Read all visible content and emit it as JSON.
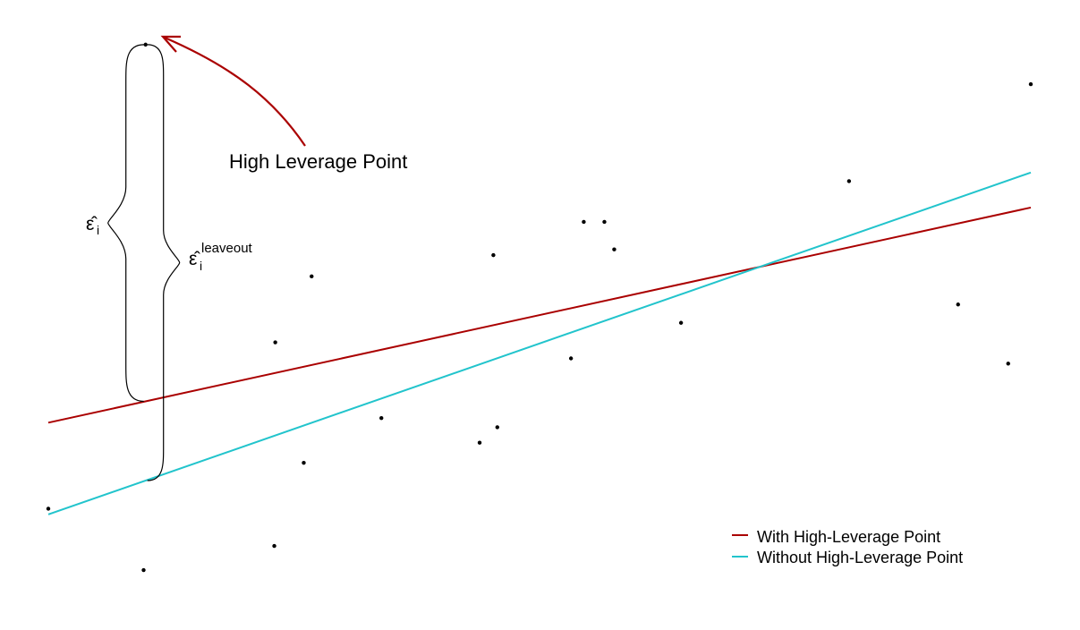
{
  "chart_data": {
    "type": "scatter",
    "title": "",
    "xlabel": "",
    "ylabel": "",
    "xlim": [
      0,
      100
    ],
    "ylim": [
      0,
      100
    ],
    "grid": false,
    "legend_position": "bottom-right",
    "points": [
      {
        "x": 0.0,
        "y": 16.0
      },
      {
        "x": 9.7,
        "y": 5.3
      },
      {
        "x": 9.9,
        "y": 96.9
      },
      {
        "x": 23.0,
        "y": 9.5
      },
      {
        "x": 23.1,
        "y": 45.0
      },
      {
        "x": 26.0,
        "y": 24.0
      },
      {
        "x": 26.8,
        "y": 56.5
      },
      {
        "x": 33.9,
        "y": 31.8
      },
      {
        "x": 43.9,
        "y": 27.5
      },
      {
        "x": 45.7,
        "y": 30.2
      },
      {
        "x": 45.3,
        "y": 60.2
      },
      {
        "x": 53.2,
        "y": 42.2
      },
      {
        "x": 54.5,
        "y": 66.0
      },
      {
        "x": 56.6,
        "y": 66.0
      },
      {
        "x": 57.6,
        "y": 61.2
      },
      {
        "x": 64.4,
        "y": 48.4
      },
      {
        "x": 81.5,
        "y": 73.1
      },
      {
        "x": 92.6,
        "y": 51.6
      },
      {
        "x": 97.7,
        "y": 41.3
      },
      {
        "x": 100.0,
        "y": 90.0
      }
    ],
    "highlight_point_index": 2,
    "series": [
      {
        "name": "With High-Leverage Point",
        "color": "#aa0000",
        "x": [
          0,
          100
        ],
        "y": [
          31.0,
          68.5
        ]
      },
      {
        "name": "Without High-Leverage Point",
        "color": "#22c4cc",
        "x": [
          0,
          100
        ],
        "y": [
          15.0,
          74.6
        ]
      }
    ],
    "annotations": {
      "high_leverage_label": "High Leverage Point",
      "arrow_color": "#aa0000",
      "eps_hat_label": "ε̂",
      "eps_hat_sub": "i",
      "eps_leaveout_label": "ε̂",
      "eps_leaveout_sub": "i",
      "eps_leaveout_sup": "leaveout"
    }
  }
}
